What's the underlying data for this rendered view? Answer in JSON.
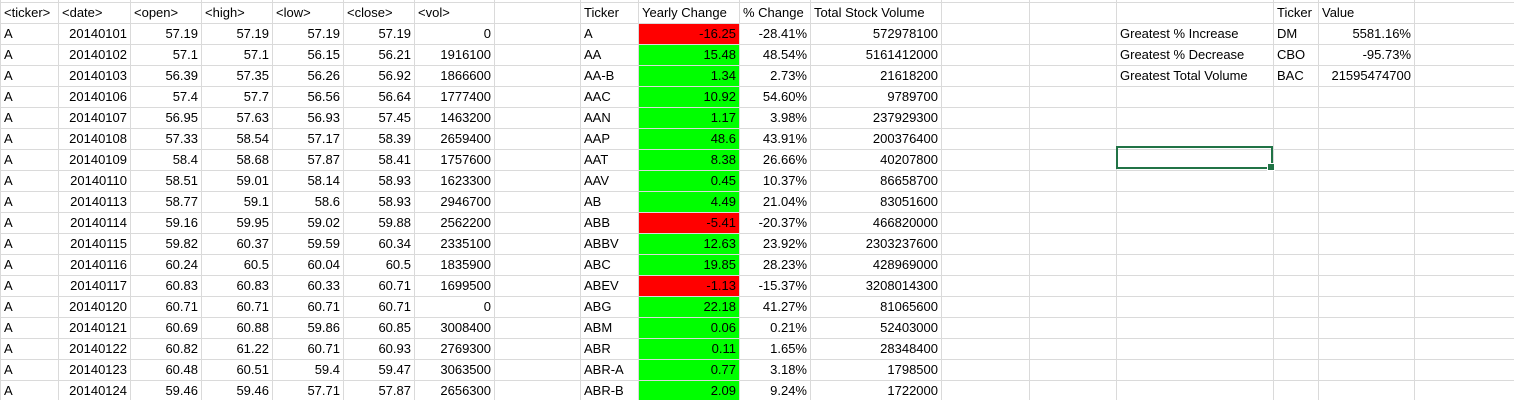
{
  "colors": {
    "positive": "#00ff00",
    "negative": "#ff0000",
    "gridline": "#dadada",
    "selection": "#217346"
  },
  "raw_headers": [
    "<ticker>",
    "<date>",
    "<open>",
    "<high>",
    "<low>",
    "<close>",
    "<vol>"
  ],
  "raw_rows": [
    [
      "A",
      "20140101",
      "57.19",
      "57.19",
      "57.19",
      "57.19",
      "0"
    ],
    [
      "A",
      "20140102",
      "57.1",
      "57.1",
      "56.15",
      "56.21",
      "1916100"
    ],
    [
      "A",
      "20140103",
      "56.39",
      "57.35",
      "56.26",
      "56.92",
      "1866600"
    ],
    [
      "A",
      "20140106",
      "57.4",
      "57.7",
      "56.56",
      "56.64",
      "1777400"
    ],
    [
      "A",
      "20140107",
      "56.95",
      "57.63",
      "56.93",
      "57.45",
      "1463200"
    ],
    [
      "A",
      "20140108",
      "57.33",
      "58.54",
      "57.17",
      "58.39",
      "2659400"
    ],
    [
      "A",
      "20140109",
      "58.4",
      "58.68",
      "57.87",
      "58.41",
      "1757600"
    ],
    [
      "A",
      "20140110",
      "58.51",
      "59.01",
      "58.14",
      "58.93",
      "1623300"
    ],
    [
      "A",
      "20140113",
      "58.77",
      "59.1",
      "58.6",
      "58.93",
      "2946700"
    ],
    [
      "A",
      "20140114",
      "59.16",
      "59.95",
      "59.02",
      "59.88",
      "2562200"
    ],
    [
      "A",
      "20140115",
      "59.82",
      "60.37",
      "59.59",
      "60.34",
      "2335100"
    ],
    [
      "A",
      "20140116",
      "60.24",
      "60.5",
      "60.04",
      "60.5",
      "1835900"
    ],
    [
      "A",
      "20140117",
      "60.83",
      "60.83",
      "60.33",
      "60.71",
      "1699500"
    ],
    [
      "A",
      "20140120",
      "60.71",
      "60.71",
      "60.71",
      "60.71",
      "0"
    ],
    [
      "A",
      "20140121",
      "60.69",
      "60.88",
      "59.86",
      "60.85",
      "3008400"
    ],
    [
      "A",
      "20140122",
      "60.82",
      "61.22",
      "60.71",
      "60.93",
      "2769300"
    ],
    [
      "A",
      "20140123",
      "60.48",
      "60.51",
      "59.4",
      "59.47",
      "3063500"
    ],
    [
      "A",
      "20140124",
      "59.46",
      "59.46",
      "57.71",
      "57.87",
      "2656300"
    ]
  ],
  "summary_headers": [
    "Ticker",
    "Yearly Change",
    "% Change",
    "Total Stock Volume"
  ],
  "summary_rows": [
    [
      "A",
      "-16.25",
      "-28.41%",
      "572978100"
    ],
    [
      "AA",
      "15.48",
      "48.54%",
      "5161412000"
    ],
    [
      "AA-B",
      "1.34",
      "2.73%",
      "21618200"
    ],
    [
      "AAC",
      "10.92",
      "54.60%",
      "9789700"
    ],
    [
      "AAN",
      "1.17",
      "3.98%",
      "237929300"
    ],
    [
      "AAP",
      "48.6",
      "43.91%",
      "200376400"
    ],
    [
      "AAT",
      "8.38",
      "26.66%",
      "40207800"
    ],
    [
      "AAV",
      "0.45",
      "10.37%",
      "86658700"
    ],
    [
      "AB",
      "4.49",
      "21.04%",
      "83051600"
    ],
    [
      "ABB",
      "-5.41",
      "-20.37%",
      "466820000"
    ],
    [
      "ABBV",
      "12.63",
      "23.92%",
      "2303237600"
    ],
    [
      "ABC",
      "19.85",
      "28.23%",
      "428969000"
    ],
    [
      "ABEV",
      "-1.13",
      "-15.37%",
      "3208014300"
    ],
    [
      "ABG",
      "22.18",
      "41.27%",
      "81065600"
    ],
    [
      "ABM",
      "0.06",
      "0.21%",
      "52403000"
    ],
    [
      "ABR",
      "0.11",
      "1.65%",
      "28348400"
    ],
    [
      "ABR-A",
      "0.77",
      "3.18%",
      "1798500"
    ],
    [
      "ABR-B",
      "2.09",
      "9.24%",
      "1722000"
    ]
  ],
  "greatest_headers": [
    "Ticker",
    "Value"
  ],
  "greatest_rows": [
    [
      "Greatest % Increase",
      "DM",
      "5581.16%"
    ],
    [
      "Greatest % Decrease",
      "CBO",
      "-95.73%"
    ],
    [
      "Greatest Total Volume",
      "BAC",
      "21595474700"
    ]
  ]
}
